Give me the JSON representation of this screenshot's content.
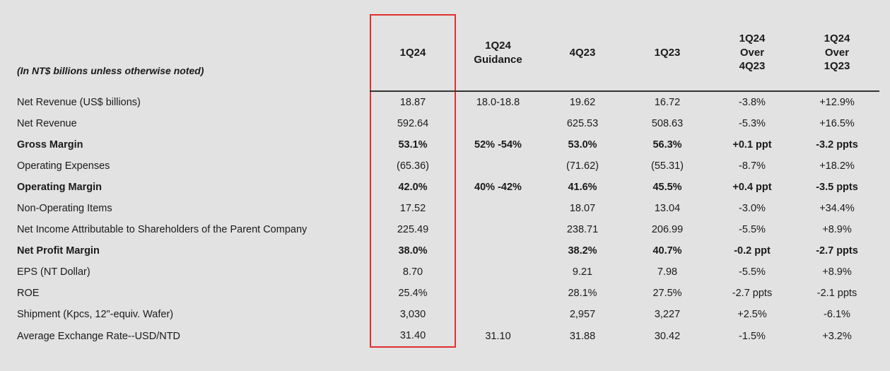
{
  "note": "(In NT$ billions unless otherwise noted)",
  "background_color": "#e2e2e2",
  "highlight_border_color": "#e03030",
  "text_color": "#1a1a1a",
  "header_underline_color": "#333333",
  "font_family": "Arial",
  "columns": [
    {
      "key": "q1_24",
      "label": "1Q24",
      "highlighted": true
    },
    {
      "key": "q1_24_guide",
      "label": "1Q24\nGuidance",
      "highlighted": false
    },
    {
      "key": "q4_23",
      "label": "4Q23",
      "highlighted": false
    },
    {
      "key": "q1_23",
      "label": "1Q23",
      "highlighted": false
    },
    {
      "key": "over_4q23",
      "label": "1Q24\nOver\n4Q23",
      "highlighted": false
    },
    {
      "key": "over_1q23",
      "label": "1Q24\nOver\n1Q23",
      "highlighted": false
    }
  ],
  "rows": [
    {
      "label": "Net Revenue (US$ billions)",
      "bold": false,
      "cells": [
        "18.87",
        "18.0-18.8",
        "19.62",
        "16.72",
        "-3.8%",
        "+12.9%"
      ]
    },
    {
      "label": "Net Revenue",
      "bold": false,
      "cells": [
        "592.64",
        "",
        "625.53",
        "508.63",
        "-5.3%",
        "+16.5%"
      ]
    },
    {
      "label": "Gross Margin",
      "bold": true,
      "cells": [
        "53.1%",
        "52% -54%",
        "53.0%",
        "56.3%",
        "+0.1 ppt",
        "-3.2 ppts"
      ]
    },
    {
      "label": "Operating Expenses",
      "bold": false,
      "cells": [
        "(65.36)",
        "",
        "(71.62)",
        "(55.31)",
        "-8.7%",
        "+18.2%"
      ]
    },
    {
      "label": "Operating Margin",
      "bold": true,
      "cells": [
        "42.0%",
        "40% -42%",
        "41.6%",
        "45.5%",
        "+0.4 ppt",
        "-3.5 ppts"
      ]
    },
    {
      "label": "Non-Operating Items",
      "bold": false,
      "cells": [
        "17.52",
        "",
        "18.07",
        "13.04",
        "-3.0%",
        "+34.4%"
      ]
    },
    {
      "label": "Net Income Attributable to Shareholders of the Parent Company",
      "bold": false,
      "cells": [
        "225.49",
        "",
        "238.71",
        "206.99",
        "-5.5%",
        "+8.9%"
      ]
    },
    {
      "label": "Net Profit Margin",
      "bold": true,
      "cells": [
        "38.0%",
        "",
        "38.2%",
        "40.7%",
        "-0.2 ppt",
        "-2.7 ppts"
      ]
    },
    {
      "label": "EPS (NT Dollar)",
      "bold": false,
      "cells": [
        "8.70",
        "",
        "9.21",
        "7.98",
        "-5.5%",
        "+8.9%"
      ]
    },
    {
      "label": "ROE",
      "bold": false,
      "cells": [
        "25.4%",
        "",
        "28.1%",
        "27.5%",
        "-2.7 ppts",
        "-2.1 ppts"
      ]
    },
    {
      "label": "Shipment (Kpcs, 12\"-equiv. Wafer)",
      "bold": false,
      "cells": [
        "3,030",
        "",
        "2,957",
        "3,227",
        "+2.5%",
        "-6.1%"
      ]
    },
    {
      "label": "Average Exchange Rate--USD/NTD",
      "bold": false,
      "cells": [
        "31.40",
        "31.10",
        "31.88",
        "30.42",
        "-1.5%",
        "+3.2%"
      ]
    }
  ]
}
